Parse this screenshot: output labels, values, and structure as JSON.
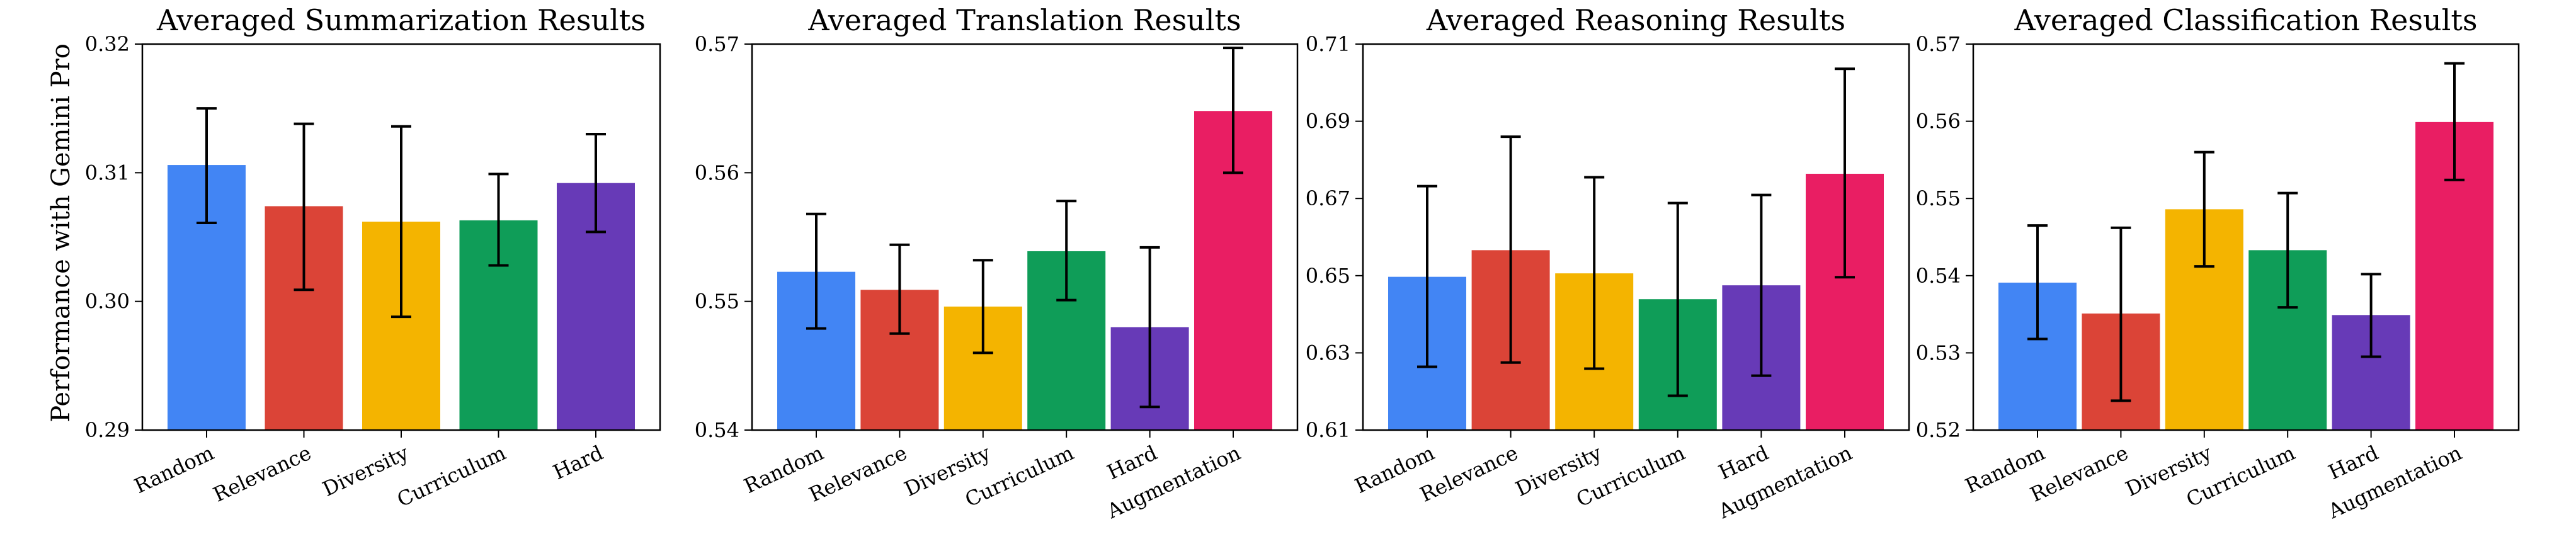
{
  "y_axis_label": "Performance with Gemini Pro",
  "colors": {
    "Random": "#4285F4",
    "Relevance": "#DB4437",
    "Diversity": "#F4B400",
    "Curriculum": "#0F9D58",
    "Hard": "#673AB7",
    "Augmentation": "#E91E63"
  },
  "chart_data": [
    {
      "type": "bar",
      "title": "Averaged Summarization Results",
      "ylabel": "Performance with Gemini Pro",
      "categories": [
        "Random",
        "Relevance",
        "Diversity",
        "Curriculum",
        "Hard"
      ],
      "values": [
        0.3106,
        0.3074,
        0.3062,
        0.3063,
        0.3092
      ],
      "error_low": [
        0.3061,
        0.3009,
        0.2988,
        0.3028,
        0.3054
      ],
      "error_high": [
        0.315,
        0.3138,
        0.3136,
        0.3099,
        0.313
      ],
      "ylim": [
        0.29,
        0.32
      ],
      "yticks": [
        "0.29",
        "0.30",
        "0.31",
        "0.32"
      ]
    },
    {
      "type": "bar",
      "title": "Averaged Translation Results",
      "ylabel": "",
      "categories": [
        "Random",
        "Relevance",
        "Diversity",
        "Curriculum",
        "Hard",
        "Augmentation"
      ],
      "values": [
        0.5523,
        0.5509,
        0.5496,
        0.5539,
        0.548,
        0.5648
      ],
      "error_low": [
        0.5479,
        0.5475,
        0.546,
        0.5501,
        0.5418,
        0.56
      ],
      "error_high": [
        0.5568,
        0.5544,
        0.5532,
        0.5578,
        0.5542,
        0.5697
      ],
      "ylim": [
        0.54,
        0.57
      ],
      "yticks": [
        "0.54",
        "0.55",
        "0.56",
        "0.57"
      ]
    },
    {
      "type": "bar",
      "title": "Averaged Reasoning Results",
      "ylabel": "",
      "categories": [
        "Random",
        "Relevance",
        "Diversity",
        "Curriculum",
        "Hard",
        "Augmentation"
      ],
      "values": [
        0.6497,
        0.6566,
        0.6506,
        0.6439,
        0.6475,
        0.6764
      ],
      "error_low": [
        0.6264,
        0.6275,
        0.6259,
        0.6189,
        0.6241,
        0.6496
      ],
      "error_high": [
        0.6732,
        0.686,
        0.6755,
        0.6688,
        0.6709,
        0.7036
      ],
      "ylim": [
        0.61,
        0.71
      ],
      "yticks": [
        "0.61",
        "0.63",
        "0.65",
        "0.67",
        "0.69",
        "0.71"
      ]
    },
    {
      "type": "bar",
      "title": "Averaged Classification Results",
      "ylabel": "",
      "categories": [
        "Random",
        "Relevance",
        "Diversity",
        "Curriculum",
        "Hard",
        "Augmentation"
      ],
      "values": [
        0.5391,
        0.5351,
        0.5486,
        0.5433,
        0.5349,
        0.5599
      ],
      "error_low": [
        0.5318,
        0.5238,
        0.5412,
        0.5359,
        0.5295,
        0.5524
      ],
      "error_high": [
        0.5465,
        0.5462,
        0.556,
        0.5507,
        0.5402,
        0.5675
      ],
      "ylim": [
        0.52,
        0.57
      ],
      "yticks": [
        "0.52",
        "0.53",
        "0.54",
        "0.55",
        "0.56",
        "0.57"
      ]
    }
  ]
}
